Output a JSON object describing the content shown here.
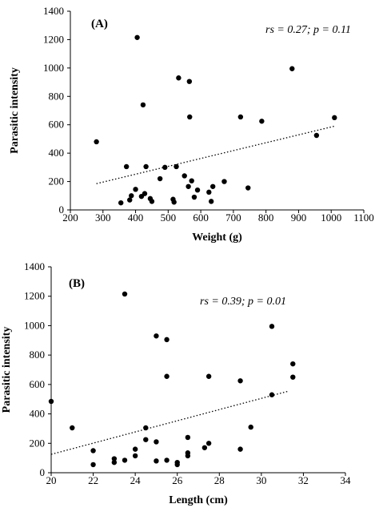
{
  "chart_data": [
    {
      "panel_label": "(A)",
      "type": "scatter",
      "xlabel": "Weight (g)",
      "ylabel": "Parasitic intensity",
      "annotation": "rs = 0.27; p = 0.11",
      "xlim": [
        200,
        1100
      ],
      "ylim": [
        0,
        1400
      ],
      "xticks": [
        200,
        300,
        400,
        500,
        600,
        700,
        800,
        900,
        1000,
        1100
      ],
      "yticks": [
        0,
        200,
        400,
        600,
        800,
        1000,
        1200,
        1400
      ],
      "grid": false,
      "trendline": {
        "style": "dotted",
        "x": [
          280,
          1010
        ],
        "y": [
          185,
          590
        ]
      },
      "points": [
        {
          "x": 280,
          "y": 480
        },
        {
          "x": 355,
          "y": 50
        },
        {
          "x": 372,
          "y": 305
        },
        {
          "x": 382,
          "y": 70
        },
        {
          "x": 387,
          "y": 100
        },
        {
          "x": 400,
          "y": 145
        },
        {
          "x": 405,
          "y": 1215
        },
        {
          "x": 418,
          "y": 95
        },
        {
          "x": 423,
          "y": 740
        },
        {
          "x": 428,
          "y": 115
        },
        {
          "x": 432,
          "y": 305
        },
        {
          "x": 445,
          "y": 80
        },
        {
          "x": 450,
          "y": 60
        },
        {
          "x": 475,
          "y": 220
        },
        {
          "x": 490,
          "y": 300
        },
        {
          "x": 515,
          "y": 75
        },
        {
          "x": 518,
          "y": 55
        },
        {
          "x": 525,
          "y": 305
        },
        {
          "x": 532,
          "y": 930
        },
        {
          "x": 550,
          "y": 240
        },
        {
          "x": 562,
          "y": 165
        },
        {
          "x": 565,
          "y": 905
        },
        {
          "x": 566,
          "y": 655
        },
        {
          "x": 572,
          "y": 205
        },
        {
          "x": 580,
          "y": 90
        },
        {
          "x": 590,
          "y": 140
        },
        {
          "x": 625,
          "y": 125
        },
        {
          "x": 632,
          "y": 60
        },
        {
          "x": 637,
          "y": 165
        },
        {
          "x": 672,
          "y": 200
        },
        {
          "x": 722,
          "y": 655
        },
        {
          "x": 745,
          "y": 155
        },
        {
          "x": 787,
          "y": 625
        },
        {
          "x": 880,
          "y": 995
        },
        {
          "x": 955,
          "y": 525
        },
        {
          "x": 1010,
          "y": 650
        }
      ]
    },
    {
      "panel_label": "(B)",
      "type": "scatter",
      "xlabel": "Length (cm)",
      "ylabel": "Parasitic intensity",
      "annotation": "rs = 0.39; p = 0.01",
      "xlim": [
        20,
        34
      ],
      "ylim": [
        0,
        1400
      ],
      "xticks": [
        20,
        22,
        24,
        26,
        28,
        30,
        32,
        34
      ],
      "yticks": [
        0,
        200,
        400,
        600,
        800,
        1000,
        1200,
        1400
      ],
      "grid": false,
      "trendline": {
        "style": "dotted",
        "x": [
          20,
          31.3
        ],
        "y": [
          125,
          555
        ]
      },
      "points": [
        {
          "x": 20.0,
          "y": 485
        },
        {
          "x": 21.0,
          "y": 305
        },
        {
          "x": 22.0,
          "y": 150
        },
        {
          "x": 22.0,
          "y": 55
        },
        {
          "x": 23.0,
          "y": 95
        },
        {
          "x": 23.0,
          "y": 70
        },
        {
          "x": 23.5,
          "y": 1215
        },
        {
          "x": 23.5,
          "y": 85
        },
        {
          "x": 24.0,
          "y": 160
        },
        {
          "x": 24.0,
          "y": 115
        },
        {
          "x": 24.5,
          "y": 305
        },
        {
          "x": 24.5,
          "y": 225
        },
        {
          "x": 25.0,
          "y": 930
        },
        {
          "x": 25.0,
          "y": 210
        },
        {
          "x": 25.0,
          "y": 80
        },
        {
          "x": 25.5,
          "y": 905
        },
        {
          "x": 25.5,
          "y": 655
        },
        {
          "x": 25.5,
          "y": 85
        },
        {
          "x": 26.0,
          "y": 70
        },
        {
          "x": 26.0,
          "y": 55
        },
        {
          "x": 26.5,
          "y": 240
        },
        {
          "x": 26.5,
          "y": 135
        },
        {
          "x": 26.5,
          "y": 115
        },
        {
          "x": 27.3,
          "y": 170
        },
        {
          "x": 27.5,
          "y": 655
        },
        {
          "x": 27.5,
          "y": 200
        },
        {
          "x": 29.0,
          "y": 625
        },
        {
          "x": 29.0,
          "y": 160
        },
        {
          "x": 29.5,
          "y": 310
        },
        {
          "x": 30.5,
          "y": 995
        },
        {
          "x": 30.5,
          "y": 530
        },
        {
          "x": 31.5,
          "y": 740
        },
        {
          "x": 31.5,
          "y": 650
        }
      ]
    }
  ]
}
